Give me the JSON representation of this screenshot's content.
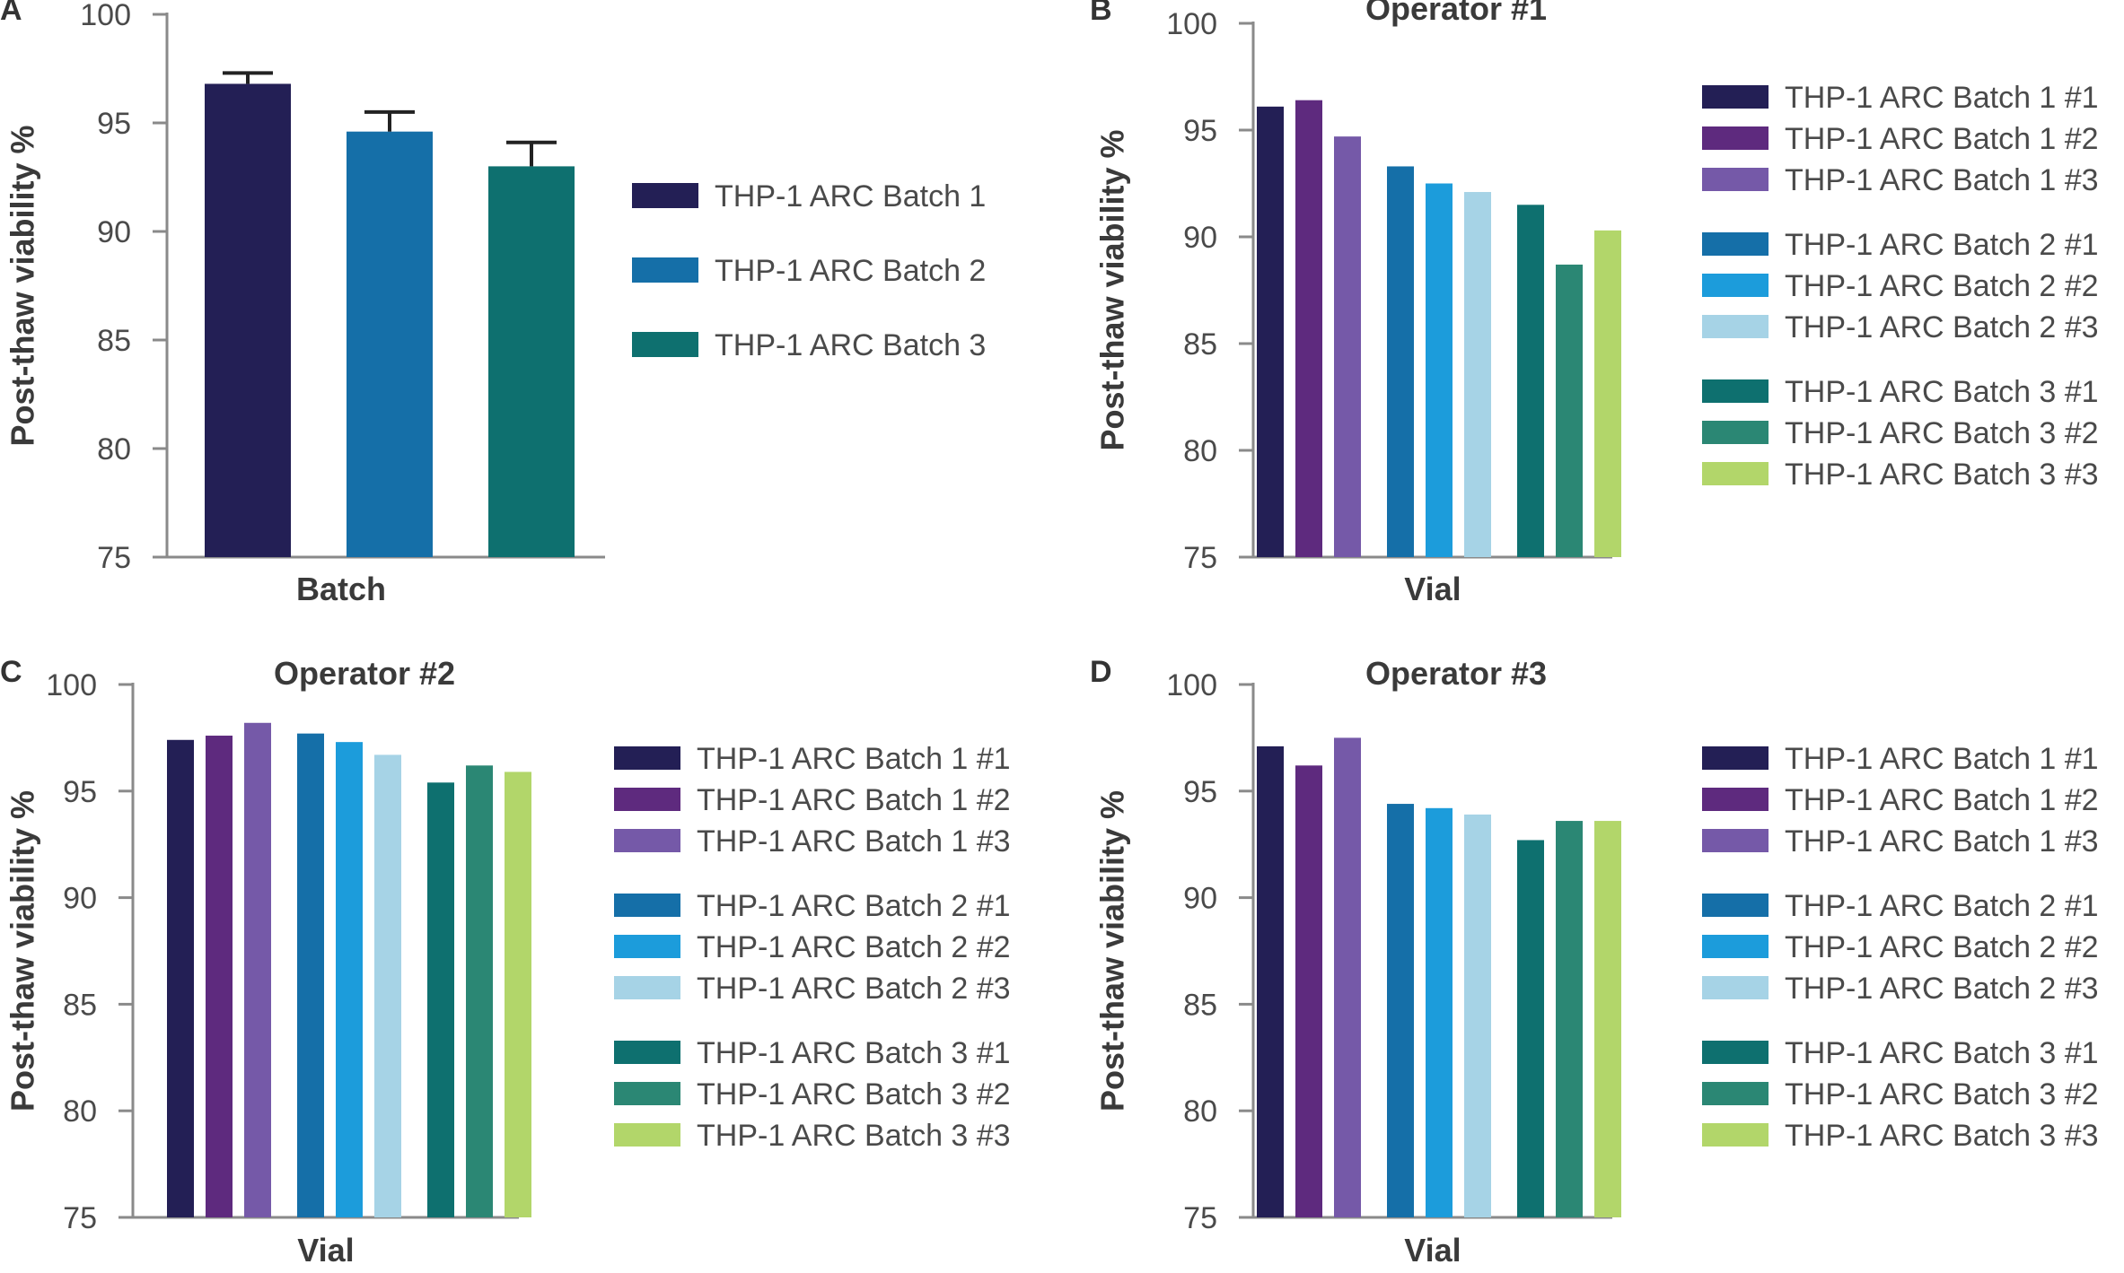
{
  "chart_data": [
    {
      "panel": "A",
      "type": "bar",
      "title": "",
      "xlabel": "Batch",
      "ylabel": "Post-thaw viability %",
      "ylim": [
        75,
        100
      ],
      "yticks": [
        75,
        80,
        85,
        90,
        95,
        100
      ],
      "grid": false,
      "legend_position": "right",
      "categories": [
        "THP-1 ARC Batch 1",
        "THP-1 ARC Batch 2",
        "THP-1 ARC Batch 3"
      ],
      "values": [
        96.8,
        94.6,
        93.0
      ],
      "errors": [
        0.5,
        0.9,
        1.1
      ],
      "colors": [
        "#231f55",
        "#156fa8",
        "#0e706f"
      ],
      "legend_groups": [
        [
          {
            "label": "THP-1 ARC Batch 1",
            "color": "#231f55"
          }
        ],
        [
          {
            "label": "THP-1 ARC Batch 2",
            "color": "#156fa8"
          }
        ],
        [
          {
            "label": "THP-1 ARC Batch 3",
            "color": "#0e706f"
          }
        ]
      ]
    },
    {
      "panel": "B",
      "type": "bar",
      "title": "Operator #1",
      "xlabel": "Vial",
      "ylabel": "Post-thaw viability %",
      "ylim": [
        75,
        100
      ],
      "yticks": [
        75,
        80,
        85,
        90,
        95,
        100
      ],
      "grid": false,
      "legend_position": "right",
      "categories": [
        "THP-1 ARC Batch 1 #1",
        "THP-1 ARC Batch 1 #2",
        "THP-1 ARC Batch 1 #3",
        "THP-1 ARC Batch 2 #1",
        "THP-1 ARC Batch 2 #2",
        "THP-1 ARC Batch 2 #3",
        "THP-1 ARC Batch 3 #1",
        "THP-1 ARC Batch 3 #2",
        "THP-1 ARC Batch 3 #3"
      ],
      "values": [
        96.1,
        96.4,
        94.7,
        93.3,
        92.5,
        92.1,
        91.5,
        88.7,
        90.3
      ],
      "colors": [
        "#231f55",
        "#5e2a7e",
        "#7559a8",
        "#156fa8",
        "#1c9cdb",
        "#a6d3e6",
        "#0e706f",
        "#2b8774",
        "#b2d66a"
      ],
      "legend_groups": [
        [
          {
            "label": "THP-1 ARC Batch 1 #1",
            "color": "#231f55"
          },
          {
            "label": "THP-1 ARC Batch 1 #2",
            "color": "#5e2a7e"
          },
          {
            "label": "THP-1 ARC Batch 1 #3",
            "color": "#7559a8"
          }
        ],
        [
          {
            "label": "THP-1 ARC Batch 2 #1",
            "color": "#156fa8"
          },
          {
            "label": "THP-1 ARC Batch 2 #2",
            "color": "#1c9cdb"
          },
          {
            "label": "THP-1 ARC Batch 2 #3",
            "color": "#a6d3e6"
          }
        ],
        [
          {
            "label": "THP-1 ARC Batch 3 #1",
            "color": "#0e706f"
          },
          {
            "label": "THP-1 ARC Batch 3 #2",
            "color": "#2b8774"
          },
          {
            "label": "THP-1 ARC Batch 3 #3",
            "color": "#b2d66a"
          }
        ]
      ]
    },
    {
      "panel": "C",
      "type": "bar",
      "title": "Operator #2",
      "xlabel": "Vial",
      "ylabel": "Post-thaw viability %",
      "ylim": [
        75,
        100
      ],
      "yticks": [
        75,
        80,
        85,
        90,
        95,
        100
      ],
      "grid": false,
      "legend_position": "right",
      "categories": [
        "THP-1 ARC Batch 1 #1",
        "THP-1 ARC Batch 1 #2",
        "THP-1 ARC Batch 1 #3",
        "THP-1 ARC Batch 2 #1",
        "THP-1 ARC Batch 2 #2",
        "THP-1 ARC Batch 2 #3",
        "THP-1 ARC Batch 3 #1",
        "THP-1 ARC Batch 3 #2",
        "THP-1 ARC Batch 3 #3"
      ],
      "values": [
        97.4,
        97.6,
        98.2,
        97.7,
        97.3,
        96.7,
        95.4,
        96.2,
        95.9
      ],
      "colors": [
        "#231f55",
        "#5e2a7e",
        "#7559a8",
        "#156fa8",
        "#1c9cdb",
        "#a6d3e6",
        "#0e706f",
        "#2b8774",
        "#b2d66a"
      ],
      "legend_groups": [
        [
          {
            "label": "THP-1 ARC Batch 1 #1",
            "color": "#231f55"
          },
          {
            "label": "THP-1 ARC Batch 1 #2",
            "color": "#5e2a7e"
          },
          {
            "label": "THP-1 ARC Batch 1 #3",
            "color": "#7559a8"
          }
        ],
        [
          {
            "label": "THP-1 ARC Batch 2 #1",
            "color": "#156fa8"
          },
          {
            "label": "THP-1 ARC Batch 2 #2",
            "color": "#1c9cdb"
          },
          {
            "label": "THP-1 ARC Batch 2 #3",
            "color": "#a6d3e6"
          }
        ],
        [
          {
            "label": "THP-1 ARC Batch 3 #1",
            "color": "#0e706f"
          },
          {
            "label": "THP-1 ARC Batch 3 #2",
            "color": "#2b8774"
          },
          {
            "label": "THP-1 ARC Batch 3 #3",
            "color": "#b2d66a"
          }
        ]
      ]
    },
    {
      "panel": "D",
      "type": "bar",
      "title": "Operator #3",
      "xlabel": "Vial",
      "ylabel": "Post-thaw viability %",
      "ylim": [
        75,
        100
      ],
      "yticks": [
        75,
        80,
        85,
        90,
        95,
        100
      ],
      "grid": false,
      "legend_position": "right",
      "categories": [
        "THP-1 ARC Batch 1 #1",
        "THP-1 ARC Batch 1 #2",
        "THP-1 ARC Batch 1 #3",
        "THP-1 ARC Batch 2 #1",
        "THP-1 ARC Batch 2 #2",
        "THP-1 ARC Batch 2 #3",
        "THP-1 ARC Batch 3 #1",
        "THP-1 ARC Batch 3 #2",
        "THP-1 ARC Batch 3 #3"
      ],
      "values": [
        97.1,
        96.2,
        97.5,
        94.4,
        94.2,
        93.9,
        92.7,
        93.6,
        93.6
      ],
      "colors": [
        "#231f55",
        "#5e2a7e",
        "#7559a8",
        "#156fa8",
        "#1c9cdb",
        "#a6d3e6",
        "#0e706f",
        "#2b8774",
        "#b2d66a"
      ],
      "legend_groups": [
        [
          {
            "label": "THP-1 ARC Batch 1 #1",
            "color": "#231f55"
          },
          {
            "label": "THP-1 ARC Batch 1 #2",
            "color": "#5e2a7e"
          },
          {
            "label": "THP-1 ARC Batch 1 #3",
            "color": "#7559a8"
          }
        ],
        [
          {
            "label": "THP-1 ARC Batch 2 #1",
            "color": "#156fa8"
          },
          {
            "label": "THP-1 ARC Batch 2 #2",
            "color": "#1c9cdb"
          },
          {
            "label": "THP-1 ARC Batch 2 #3",
            "color": "#a6d3e6"
          }
        ],
        [
          {
            "label": "THP-1 ARC Batch 3 #1",
            "color": "#0e706f"
          },
          {
            "label": "THP-1 ARC Batch 3 #2",
            "color": "#2b8774"
          },
          {
            "label": "THP-1 ARC Batch 3 #3",
            "color": "#b2d66a"
          }
        ]
      ]
    }
  ]
}
